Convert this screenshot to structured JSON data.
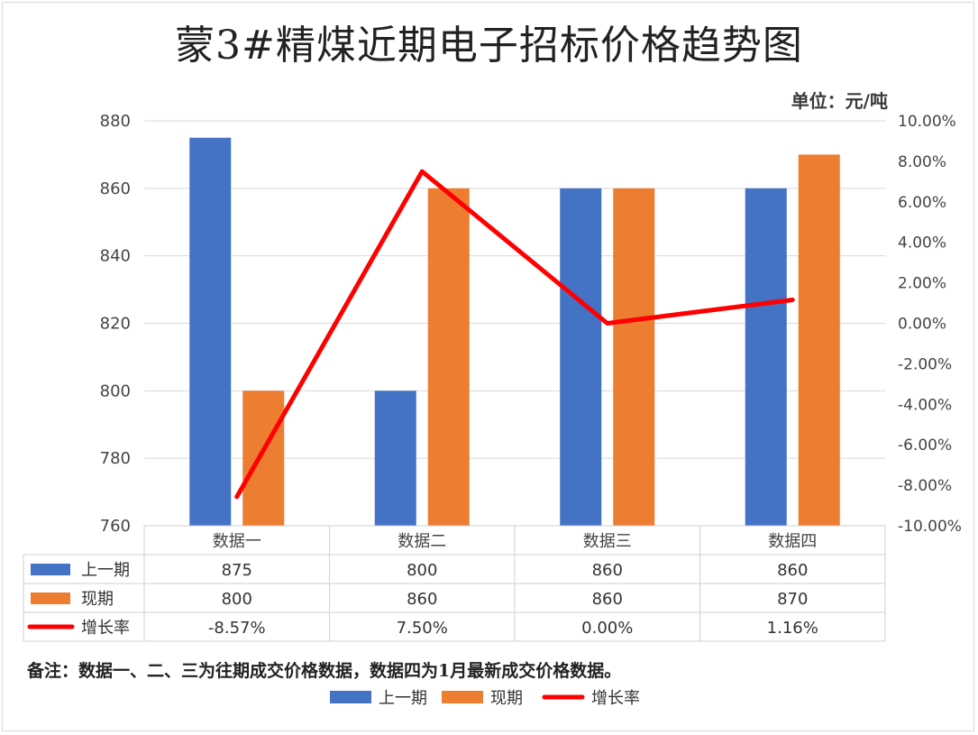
{
  "chart_data": {
    "type": "bar+line",
    "title": "蒙3#精煤近期电子招标价格趋势图",
    "unit": "单位：元/吨",
    "categories": [
      "数据一",
      "数据二",
      "数据三",
      "数据四"
    ],
    "series": [
      {
        "name": "上一期",
        "type": "bar",
        "axis": "left",
        "color": "#4472c4",
        "values": [
          875,
          800,
          860,
          860
        ],
        "labels": [
          "875",
          "800",
          "860",
          "860"
        ]
      },
      {
        "name": "现期",
        "type": "bar",
        "axis": "left",
        "color": "#ed7d31",
        "values": [
          800,
          860,
          860,
          870
        ],
        "labels": [
          "800",
          "860",
          "860",
          "870"
        ]
      },
      {
        "name": "增长率",
        "type": "line",
        "axis": "right",
        "color": "#ff0000",
        "values": [
          -8.57,
          7.5,
          0.0,
          1.16
        ],
        "labels": [
          "-8.57%",
          "7.50%",
          "0.00%",
          "1.16%"
        ]
      }
    ],
    "left_axis": {
      "min": 760,
      "max": 880,
      "step": 20,
      "ticks": [
        "880",
        "860",
        "840",
        "820",
        "800",
        "780",
        "760"
      ]
    },
    "right_axis": {
      "min": -10,
      "max": 10,
      "step": 2,
      "ticks": [
        "10.00%",
        "8.00%",
        "6.00%",
        "4.00%",
        "2.00%",
        "0.00%",
        "-2.00%",
        "-4.00%",
        "-6.00%",
        "-8.00%",
        "-10.00%"
      ]
    },
    "note": "备注：数据一、二、三为往期成交价格数据，数据四为1月最新成交价格数据。"
  }
}
